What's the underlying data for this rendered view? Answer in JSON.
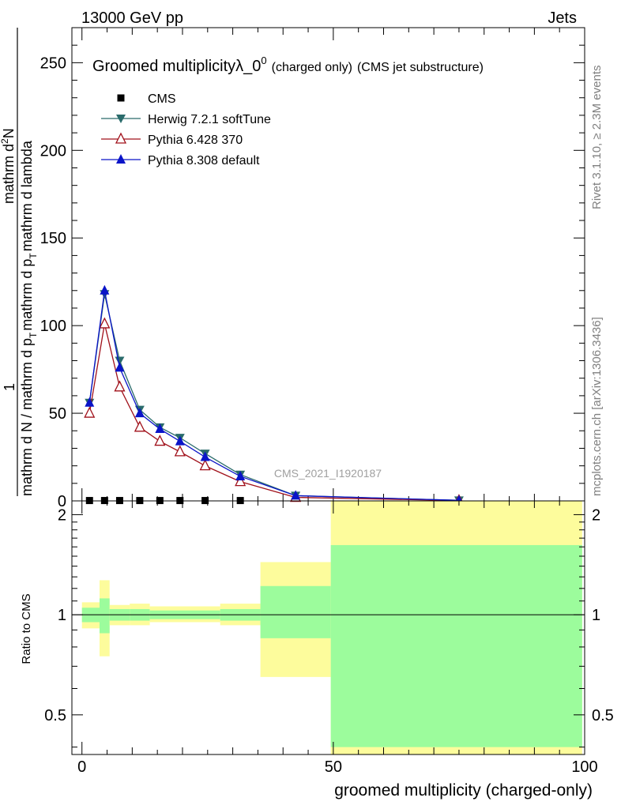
{
  "header": {
    "left": "13000 GeV pp",
    "right": "Jets"
  },
  "side_labels": {
    "rivet": "Rivet 3.1.10, ≥ 2.3M events",
    "mcplots": "mcplots.cern.ch [arXiv:1306.3436]"
  },
  "chart_data": [
    {
      "type": "line",
      "title_main": "Groomed multiplicityλ_0",
      "title_sup": "0",
      "title_paren1": "(charged only)",
      "title_paren2": "(CMS jet substructure)",
      "ylabel_numerator": "1",
      "ylabel_denominator": "mathrm d N / mathrm d p",
      "ylabel_denominator_sub": "T",
      "ylabel_denominator_rest": "mathrm d p",
      "ylabel_denominator_sub2": "T",
      "ylabel_denominator_end": "mathrm d lambda",
      "ylabel_right_numerator": "mathrm d",
      "ylabel_right_numerator_sup": "2",
      "ylabel_right_numerator_end": "N",
      "watermark": "CMS_2021_I1920187",
      "xlim": [
        -2,
        100
      ],
      "ylim": [
        0,
        270
      ],
      "yticks": [
        0,
        50,
        100,
        150,
        200,
        250
      ],
      "legend_position": "top-left",
      "series": [
        {
          "name": "CMS",
          "color": "#000000",
          "marker": "square",
          "x": [
            1.5,
            4.5,
            7.5,
            11.5,
            15.5,
            19.5,
            24.5,
            31.5
          ],
          "y": [
            0.2,
            0.2,
            0.2,
            0.2,
            0.2,
            0.2,
            0.2,
            0.2
          ]
        },
        {
          "name": "Herwig 7.2.1 softTune",
          "color": "#2a6b6b",
          "marker": "triangle-down",
          "x": [
            1.5,
            4.5,
            7.5,
            11.5,
            15.5,
            19.5,
            24.5,
            31.5,
            42.5,
            75
          ],
          "y": [
            56,
            118,
            80,
            52,
            42,
            36,
            27,
            15,
            3,
            0.3
          ]
        },
        {
          "name": "Pythia 6.428 370",
          "color": "#a0101a",
          "marker": "triangle-up-open",
          "x": [
            1.5,
            4.5,
            7.5,
            11.5,
            15.5,
            19.5,
            24.5,
            31.5,
            42.5,
            75
          ],
          "y": [
            50,
            101,
            65,
            42,
            34,
            28,
            20,
            11,
            2,
            0.2
          ]
        },
        {
          "name": "Pythia 8.308 default",
          "color": "#0a14c8",
          "marker": "triangle-up",
          "x": [
            1.5,
            4.5,
            7.5,
            11.5,
            15.5,
            19.5,
            24.5,
            31.5,
            42.5,
            75
          ],
          "y": [
            56,
            120,
            76,
            50,
            41,
            34,
            25,
            14,
            3,
            0.3
          ]
        }
      ]
    },
    {
      "type": "area",
      "ylabel": "Ratio to CMS",
      "xlabel": "groomed multiplicity (charged-only)",
      "xlim": [
        -2,
        100
      ],
      "ylim": [
        0.38,
        2.2
      ],
      "yticks": [
        0.5,
        1,
        2
      ],
      "xticks": [
        0,
        50,
        100
      ],
      "reference": 1,
      "bands": [
        {
          "x0": 0,
          "x1": 3.5,
          "inner": [
            0.95,
            1.05
          ],
          "outer": [
            0.91,
            1.09
          ]
        },
        {
          "x0": 3.5,
          "x1": 5.5,
          "inner": [
            0.88,
            1.12
          ],
          "outer": [
            0.75,
            1.27
          ]
        },
        {
          "x0": 5.5,
          "x1": 9.5,
          "inner": [
            0.96,
            1.04
          ],
          "outer": [
            0.93,
            1.07
          ]
        },
        {
          "x0": 9.5,
          "x1": 13.5,
          "inner": [
            0.96,
            1.04
          ],
          "outer": [
            0.93,
            1.08
          ]
        },
        {
          "x0": 13.5,
          "x1": 27.5,
          "inner": [
            0.97,
            1.03
          ],
          "outer": [
            0.95,
            1.06
          ]
        },
        {
          "x0": 27.5,
          "x1": 35.5,
          "inner": [
            0.96,
            1.04
          ],
          "outer": [
            0.93,
            1.08
          ]
        },
        {
          "x0": 35.5,
          "x1": 49.5,
          "inner": [
            0.85,
            1.22
          ],
          "outer": [
            0.65,
            1.44
          ]
        },
        {
          "x0": 49.5,
          "x1": 99.5,
          "inner": [
            0.4,
            1.62
          ],
          "outer": [
            0.38,
            2.2
          ]
        }
      ]
    }
  ],
  "colors": {
    "band_inner": "#9cfc9c",
    "band_outer": "#fdfc9c"
  }
}
